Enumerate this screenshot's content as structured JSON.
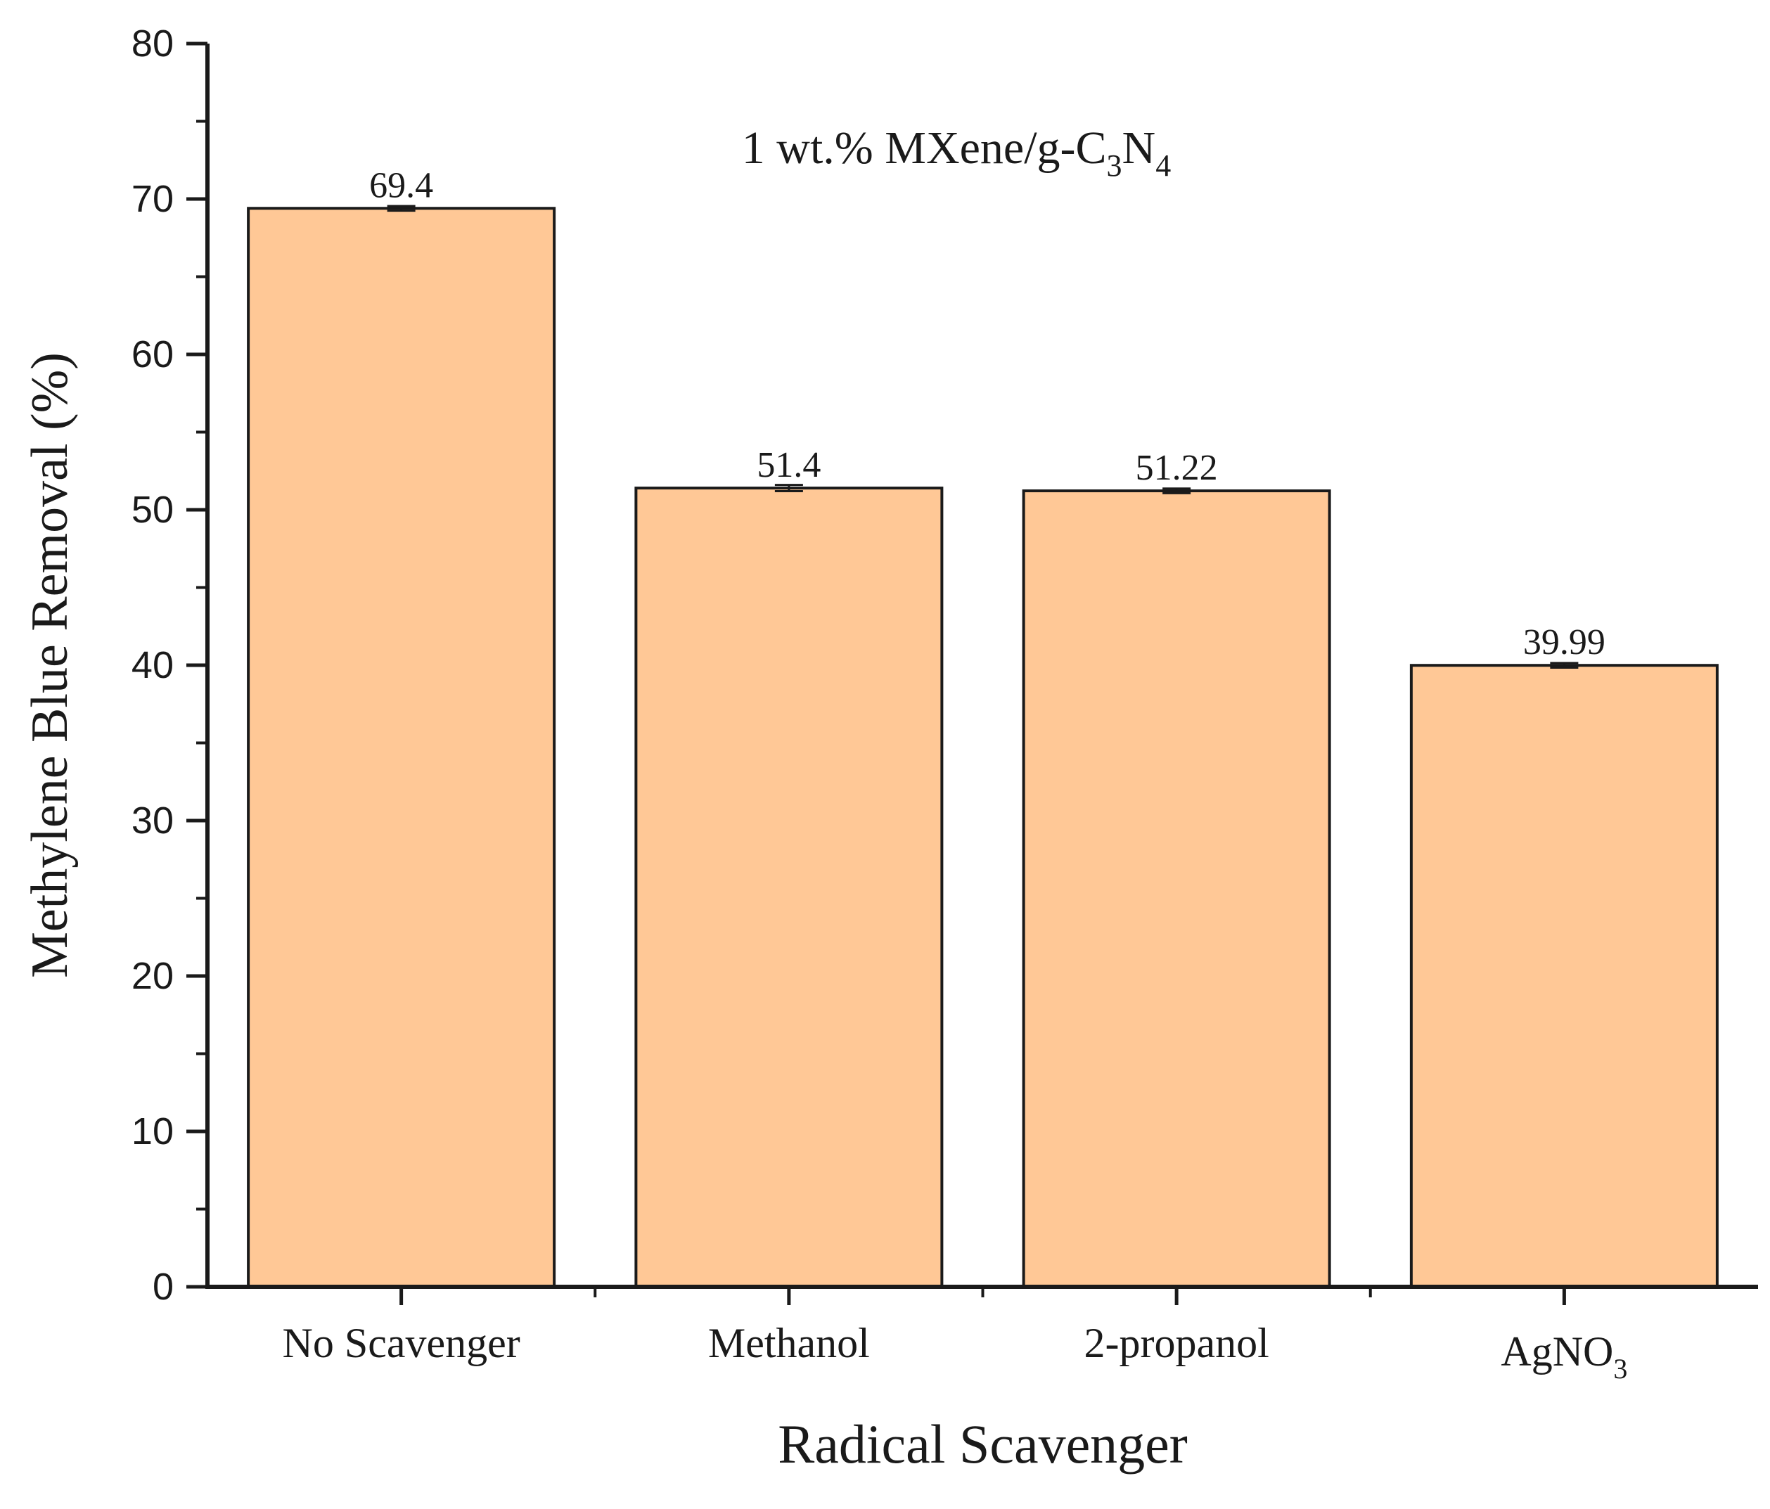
{
  "chart_data": {
    "type": "bar",
    "title": "1 wt.% MXene/g-C3N4",
    "title_parts": {
      "main": "1 wt.% MXene/g-C",
      "sub1": "3",
      "mid": "N",
      "sub2": "4"
    },
    "xlabel": "Radical Scavenger",
    "ylabel": "Methylene Blue Removal (%)",
    "ylim": [
      0,
      80
    ],
    "yticks": [
      0,
      10,
      20,
      30,
      40,
      50,
      60,
      70,
      80
    ],
    "grid": false,
    "categories": [
      {
        "label": "No Scavenger",
        "sub": ""
      },
      {
        "label": "Methanol",
        "sub": ""
      },
      {
        "label": "2-propanol",
        "sub": ""
      },
      {
        "label": "AgNO",
        "sub": "3"
      }
    ],
    "values": [
      69.4,
      51.4,
      51.22,
      39.99
    ],
    "value_labels": [
      "69.4",
      "51.4",
      "51.22",
      "39.99"
    ],
    "errors": [
      0.15,
      0.2,
      0.15,
      0.15
    ],
    "colors": {
      "bar_fill": "#FFC896",
      "bar_stroke": "#1a1a1a",
      "axis": "#1a1a1a",
      "text": "#1a1a1a"
    }
  }
}
